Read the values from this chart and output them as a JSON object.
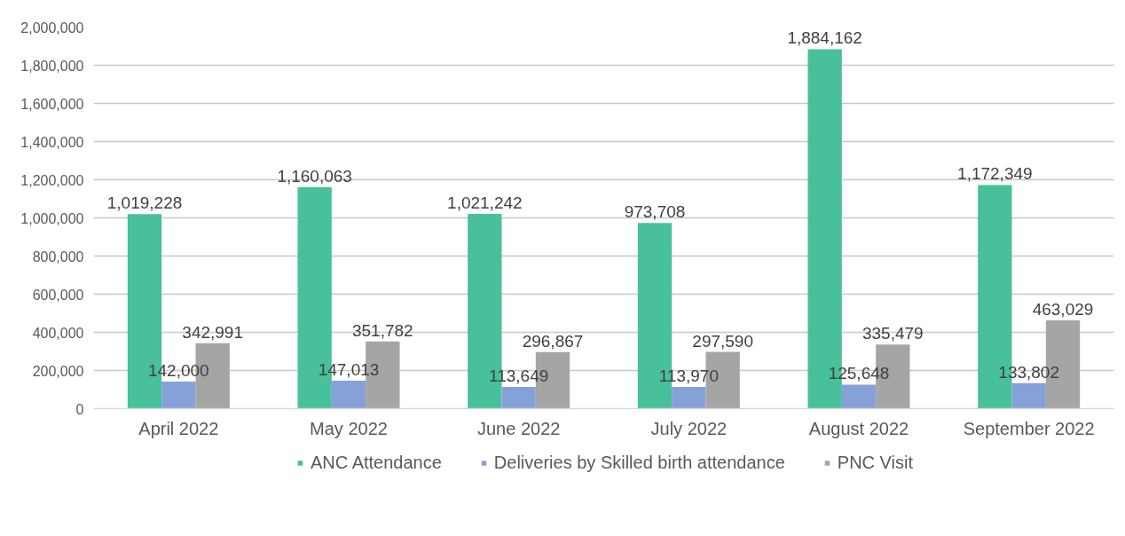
{
  "chart_data": {
    "type": "bar",
    "categories": [
      "April 2022",
      "May 2022",
      "June 2022",
      "July 2022",
      "August 2022",
      "September 2022"
    ],
    "series": [
      {
        "name": "ANC Attendance",
        "color": "#48c09b",
        "values": [
          1019228,
          1160063,
          1021242,
          973708,
          1884162,
          1172349
        ],
        "value_labels": [
          "1,019,228",
          "1,160,063",
          "1,021,242",
          "973,708",
          "1,884,162",
          "1,172,349"
        ]
      },
      {
        "name": "Deliveries by Skilled birth attendance",
        "color": "#86a0d8",
        "values": [
          142000,
          147013,
          113649,
          113970,
          125648,
          133802
        ],
        "value_labels": [
          "142,000",
          "147,013",
          "113,649",
          "113,970",
          "125,648",
          "133,802"
        ]
      },
      {
        "name": "PNC Visit",
        "color": "#a5a5a5",
        "values": [
          342991,
          351782,
          296867,
          297590,
          335479,
          463029
        ],
        "value_labels": [
          "342,991",
          "351,782",
          "296,867",
          "297,590",
          "335,479",
          "463,029"
        ]
      }
    ],
    "ylim": [
      0,
      2000000
    ],
    "yticks": [
      {
        "value": 0,
        "label": "0"
      },
      {
        "value": 200000,
        "label": "200,000"
      },
      {
        "value": 400000,
        "label": "400,000"
      },
      {
        "value": 600000,
        "label": "600,000"
      },
      {
        "value": 800000,
        "label": "800,000"
      },
      {
        "value": 1000000,
        "label": "1,000,000"
      },
      {
        "value": 1200000,
        "label": "1,200,000"
      },
      {
        "value": 1400000,
        "label": "1,400,000"
      },
      {
        "value": 1600000,
        "label": "1,600,000"
      },
      {
        "value": 1800000,
        "label": "1,800,000"
      },
      {
        "value": 2000000,
        "label": "2,000,000"
      }
    ],
    "grid": "y",
    "legend": "bottom"
  }
}
